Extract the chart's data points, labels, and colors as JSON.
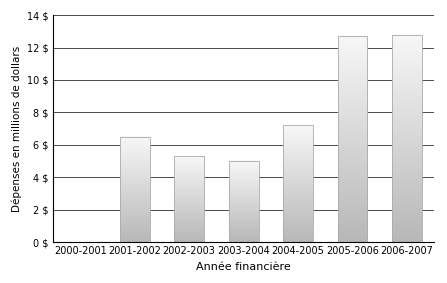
{
  "categories": [
    "2000-2001",
    "2001-2002",
    "2002-2003",
    "2003-2004",
    "2004-2005",
    "2005-2006",
    "2006-2007"
  ],
  "values": [
    0.0,
    6.5,
    5.3,
    5.0,
    7.2,
    12.7,
    12.8
  ],
  "ylabel": "Dépenses en millions de dollars",
  "xlabel": "Année financière",
  "yticks": [
    0,
    2,
    4,
    6,
    8,
    10,
    12,
    14
  ],
  "ytick_labels": [
    "0 $",
    "2 $",
    "4 $",
    "6 $",
    "8 $",
    "10 $",
    "12 $",
    "14 $"
  ],
  "ylim": [
    0,
    14
  ],
  "background_color": "#ffffff",
  "grid_color": "#555555",
  "bar_edge_color": "#aaaaaa",
  "bar_color_light": 0.97,
  "bar_color_dark": 0.72,
  "figsize": [
    4.47,
    2.83
  ],
  "dpi": 100,
  "bar_width": 0.55
}
